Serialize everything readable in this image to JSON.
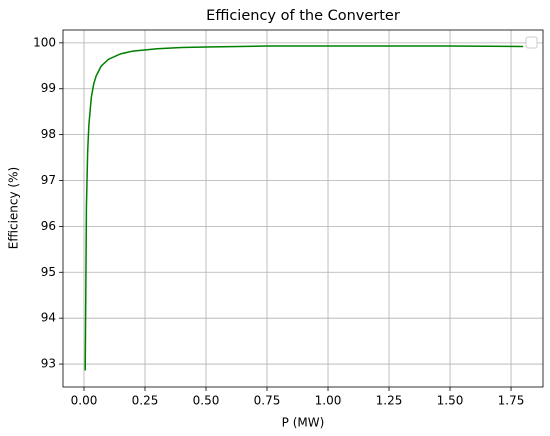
{
  "chart_data": {
    "type": "line",
    "title": "Efficiency of the Converter",
    "x_label": "P (MW)",
    "y_label": "Efficiency (%)",
    "x": [
      0.005,
      0.01,
      0.015,
      0.02,
      0.03,
      0.04,
      0.05,
      0.07,
      0.1,
      0.15,
      0.2,
      0.3,
      0.4,
      0.5,
      0.75,
      1.0,
      1.25,
      1.5,
      1.8
    ],
    "series": [
      {
        "color": "#008000",
        "values": [
          92.86,
          96.43,
          97.62,
          98.21,
          98.81,
          99.11,
          99.28,
          99.49,
          99.64,
          99.76,
          99.82,
          99.87,
          99.9,
          99.91,
          99.93,
          99.93,
          99.93,
          99.93,
          99.92
        ]
      }
    ],
    "xlim": [
      -0.086,
      1.881
    ],
    "ylim": [
      92.5,
      100.28
    ],
    "xticks": [
      {
        "value": 0,
        "label": "0.00"
      },
      {
        "value": 0.25,
        "label": "0.25"
      },
      {
        "value": 0.5,
        "label": "0.50"
      },
      {
        "value": 0.75,
        "label": "0.75"
      },
      {
        "value": 1,
        "label": "1.00"
      },
      {
        "value": 1.25,
        "label": "1.25"
      },
      {
        "value": 1.5,
        "label": "1.50"
      },
      {
        "value": 1.75,
        "label": "1.75"
      }
    ],
    "yticks": [
      93,
      94,
      95,
      96,
      97,
      98,
      99,
      100
    ],
    "grid": true
  }
}
